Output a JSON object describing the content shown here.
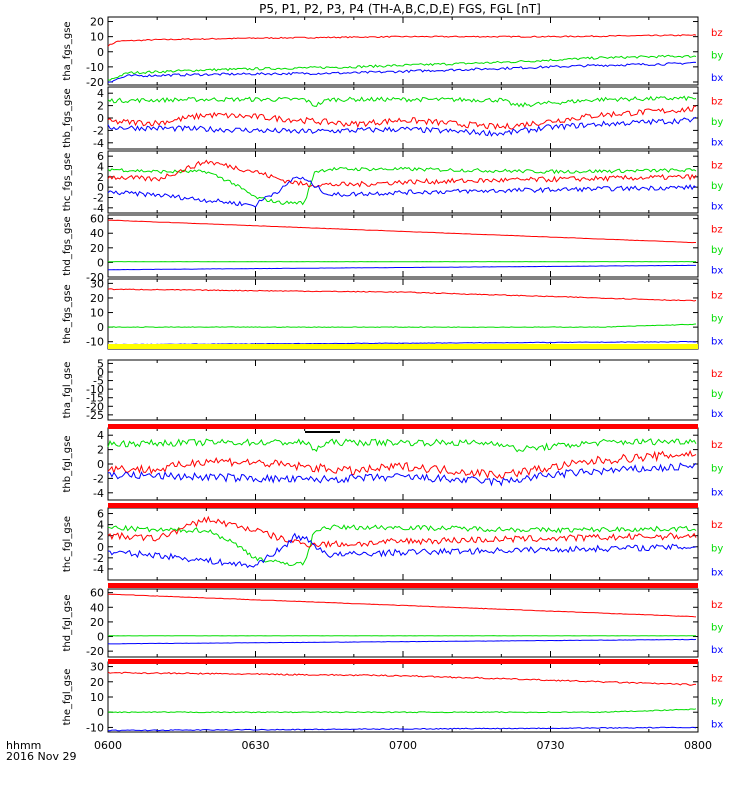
{
  "chart_data": {
    "type": "line",
    "title": "P5, P1, P2, P3, P4 (TH-A,B,C,D,E) FGS, FGL [nT]",
    "x_axis": {
      "label": "hhmm",
      "date": "2016 Nov 29",
      "ticks": [
        "0600",
        "0630",
        "0700",
        "0730",
        "0800"
      ],
      "range": [
        "06:00",
        "08:00"
      ]
    },
    "series_names": [
      "bz",
      "by",
      "bx"
    ],
    "series_colors": {
      "bz": "#ff0000",
      "by": "#00dd00",
      "bx": "#0000ff"
    },
    "panels": [
      {
        "ylabel": "tha_fgs_gse",
        "ylim": [
          -22,
          23
        ],
        "ticks": [
          20,
          10,
          0,
          -10,
          -20
        ],
        "series": [
          {
            "name": "bz",
            "x": [
              0,
              2,
              10,
              30,
              60,
              90,
              120
            ],
            "y": [
              4,
              7,
              8,
              9,
              10,
              10,
              11
            ],
            "noise": 0.4
          },
          {
            "name": "by",
            "x": [
              0,
              4,
              20,
              50,
              80,
              100,
              115,
              120
            ],
            "y": [
              -19,
              -14,
              -12,
              -10,
              -7,
              -4,
              -3,
              -3
            ],
            "noise": 0.8
          },
          {
            "name": "bx",
            "x": [
              0,
              4,
              20,
              50,
              80,
              100,
              115,
              120
            ],
            "y": [
              -20,
              -16,
              -15,
              -14,
              -11,
              -9,
              -8,
              -7
            ],
            "noise": 0.8
          }
        ]
      },
      {
        "ylabel": "thb_fgs_gse",
        "ylim": [
          -5,
          5
        ],
        "ticks": [
          4,
          2,
          0,
          -2,
          -4
        ],
        "series": [
          {
            "name": "by",
            "x": [
              0,
              20,
              40,
              42,
              45,
              60,
              80,
              83,
              100,
              120
            ],
            "y": [
              2.8,
              3.0,
              3.0,
              2.0,
              3.0,
              3.0,
              2.9,
              2.0,
              3.0,
              3.2
            ],
            "noise": 0.35
          },
          {
            "name": "bz",
            "x": [
              0,
              10,
              20,
              30,
              50,
              60,
              80,
              90,
              100,
              120
            ],
            "y": [
              -0.6,
              -0.8,
              0.5,
              0.2,
              -1.0,
              -0.3,
              -1.5,
              -0.5,
              0.5,
              1.5
            ],
            "noise": 0.5
          },
          {
            "name": "bx",
            "x": [
              0,
              20,
              40,
              60,
              80,
              90,
              100,
              120
            ],
            "y": [
              -1.5,
              -1.8,
              -2.2,
              -1.8,
              -2.5,
              -1.5,
              -1.0,
              -0.3
            ],
            "noise": 0.45
          }
        ]
      },
      {
        "ylabel": "thc_fgs_gse",
        "ylim": [
          -5,
          7
        ],
        "ticks": [
          6,
          4,
          2,
          0,
          -2,
          -4
        ],
        "series": [
          {
            "name": "by",
            "x": [
              0,
              10,
              20,
              25,
              30,
              35,
              40,
              42,
              45,
              60,
              90,
              120
            ],
            "y": [
              3.5,
              3.0,
              3.0,
              1.0,
              -2.0,
              -3.0,
              -3.0,
              3.0,
              3.5,
              3.5,
              3.0,
              3.3
            ],
            "noise": 0.35
          },
          {
            "name": "bz",
            "x": [
              0,
              10,
              20,
              25,
              30,
              35,
              40,
              50,
              60,
              90,
              120
            ],
            "y": [
              2.0,
              1.5,
              5.0,
              4.0,
              3.0,
              1.5,
              0.5,
              0.5,
              1.0,
              1.5,
              2.0
            ],
            "noise": 0.5
          },
          {
            "name": "bx",
            "x": [
              0,
              10,
              20,
              30,
              32,
              36,
              38,
              40,
              45,
              60,
              90,
              120
            ],
            "y": [
              -1.0,
              -1.5,
              -2.5,
              -3.5,
              -2.0,
              0.0,
              2.0,
              1.5,
              -1.5,
              -1.0,
              -0.5,
              0.0
            ],
            "noise": 0.45
          }
        ]
      },
      {
        "ylabel": "thd_fgs_gse",
        "ylim": [
          -20,
          65
        ],
        "ticks": [
          60,
          40,
          20,
          0,
          -20
        ],
        "series": [
          {
            "name": "bz",
            "x": [
              0,
              120
            ],
            "y": [
              58,
              27
            ],
            "noise": 0.2
          },
          {
            "name": "by",
            "x": [
              0,
              120
            ],
            "y": [
              1,
              1
            ],
            "noise": 0.15
          },
          {
            "name": "bx",
            "x": [
              0,
              120
            ],
            "y": [
              -10,
              -4
            ],
            "noise": 0.15
          }
        ]
      },
      {
        "ylabel": "the_fgs_gse",
        "ylim": [
          -15,
          33
        ],
        "ticks": [
          30,
          20,
          10,
          0,
          -10
        ],
        "series": [
          {
            "name": "bz",
            "x": [
              0,
              60,
              120
            ],
            "y": [
              26,
              24,
              18
            ],
            "noise": 0.3
          },
          {
            "name": "by",
            "x": [
              0,
              100,
              120
            ],
            "y": [
              0,
              0,
              2
            ],
            "noise": 0.2
          },
          {
            "name": "bx",
            "x": [
              0,
              120
            ],
            "y": [
              -12,
              -10
            ],
            "noise": 0.2
          }
        ]
      },
      {
        "ylabel": "tha_fgl_gse",
        "ylim": [
          -28,
          7
        ],
        "ticks": [
          5,
          0,
          -5,
          -10,
          -15,
          -20,
          -25
        ],
        "series": []
      },
      {
        "ylabel": "thb_fgl_gse",
        "ylim": [
          -5,
          5
        ],
        "ticks": [
          4,
          2,
          0,
          -2,
          -4
        ],
        "series": [
          {
            "name": "by",
            "x": [
              0,
              20,
              40,
              42,
              45,
              60,
              80,
              83,
              100,
              120
            ],
            "y": [
              2.8,
              3.0,
              3.0,
              2.0,
              3.0,
              3.0,
              2.9,
              2.0,
              3.0,
              3.2
            ],
            "noise": 0.45
          },
          {
            "name": "bz",
            "x": [
              0,
              10,
              20,
              30,
              50,
              60,
              80,
              90,
              100,
              120
            ],
            "y": [
              -0.6,
              -0.8,
              0.5,
              0.2,
              -1.0,
              -0.3,
              -1.5,
              -0.5,
              0.5,
              1.5
            ],
            "noise": 0.6
          },
          {
            "name": "bx",
            "x": [
              0,
              20,
              40,
              60,
              80,
              90,
              100,
              120
            ],
            "y": [
              -1.5,
              -1.8,
              -2.2,
              -1.8,
              -2.5,
              -1.5,
              -1.0,
              -0.3
            ],
            "noise": 0.55
          }
        ]
      },
      {
        "ylabel": "thc_fgl_gse",
        "ylim": [
          -6,
          7
        ],
        "ticks": [
          6,
          4,
          2,
          0,
          -2,
          -4
        ],
        "series": [
          {
            "name": "by",
            "x": [
              0,
              10,
              20,
              25,
              30,
              35,
              40,
              42,
              45,
              60,
              90,
              120
            ],
            "y": [
              3.5,
              3.0,
              3.0,
              1.0,
              -2.0,
              -3.0,
              -3.0,
              3.0,
              3.5,
              3.5,
              3.0,
              3.3
            ],
            "noise": 0.45
          },
          {
            "name": "bz",
            "x": [
              0,
              10,
              20,
              25,
              30,
              35,
              40,
              50,
              60,
              90,
              120
            ],
            "y": [
              2.0,
              1.5,
              5.0,
              4.0,
              3.0,
              1.5,
              0.5,
              0.5,
              1.0,
              1.5,
              2.0
            ],
            "noise": 0.6
          },
          {
            "name": "bx",
            "x": [
              0,
              10,
              20,
              30,
              32,
              36,
              38,
              40,
              45,
              60,
              90,
              120
            ],
            "y": [
              -1.0,
              -1.5,
              -2.5,
              -3.5,
              -2.0,
              0.0,
              2.0,
              1.5,
              -1.5,
              -1.0,
              -0.5,
              0.0
            ],
            "noise": 0.55
          }
        ]
      },
      {
        "ylabel": "thd_fgl_gse",
        "ylim": [
          -28,
          65
        ],
        "ticks": [
          60,
          40,
          20,
          0,
          -20
        ],
        "series": [
          {
            "name": "bz",
            "x": [
              0,
              120
            ],
            "y": [
              58,
              27
            ],
            "noise": 0.3
          },
          {
            "name": "by",
            "x": [
              0,
              120
            ],
            "y": [
              1,
              1
            ],
            "noise": 0.2
          },
          {
            "name": "bx",
            "x": [
              0,
              120
            ],
            "y": [
              -10,
              -4
            ],
            "noise": 0.2
          }
        ]
      },
      {
        "ylabel": "the_fgl_gse",
        "ylim": [
          -13,
          33
        ],
        "ticks": [
          30,
          20,
          10,
          0,
          -10
        ],
        "series": [
          {
            "name": "bz",
            "x": [
              0,
              60,
              120
            ],
            "y": [
              26,
              24,
              18
            ],
            "noise": 0.45
          },
          {
            "name": "by",
            "x": [
              0,
              100,
              120
            ],
            "y": [
              0,
              0,
              2
            ],
            "noise": 0.3
          },
          {
            "name": "bx",
            "x": [
              0,
              120
            ],
            "y": [
              -12,
              -10
            ],
            "noise": 0.3
          }
        ]
      }
    ]
  }
}
